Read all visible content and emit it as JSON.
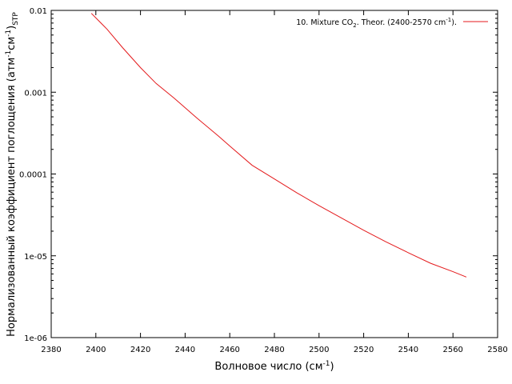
{
  "chart_data": {
    "type": "line",
    "title": "",
    "xlabel": {
      "base": "Волновое число (см",
      "sup": "-1",
      "tail": ")"
    },
    "ylabel": {
      "base": "Нормализованный коэффициент поглощения (атм",
      "sup1": "-1",
      "mid": "см",
      "sup2": "-1",
      "tail": ")",
      "sub": "STP"
    },
    "x_scale": "linear",
    "y_scale": "log",
    "xlim": [
      2380,
      2580
    ],
    "ylim": [
      1e-06,
      0.01
    ],
    "grid": false,
    "legend_position": "top-right",
    "x_ticks": [
      "2380",
      "2400",
      "2420",
      "2440",
      "2460",
      "2480",
      "2500",
      "2520",
      "2540",
      "2560",
      "2580"
    ],
    "y_ticks": [
      "1e-06",
      "1e-05",
      "0.0001",
      "0.001",
      "0.01"
    ],
    "x_tick_values": [
      2380,
      2400,
      2420,
      2440,
      2460,
      2480,
      2500,
      2520,
      2540,
      2560,
      2580
    ],
    "y_tick_values": [
      1e-06,
      1e-05,
      0.0001,
      0.001,
      0.01
    ],
    "series": [
      {
        "name": {
          "p1": "10. Mixture CO",
          "sub": "2",
          "p2": ". Theor. (2400-2570 cm",
          "sup": "-1",
          "p3": ")."
        },
        "color": "#e41a1c",
        "x": [
          2398,
          2405,
          2412,
          2420,
          2427,
          2435,
          2445,
          2455,
          2460,
          2470,
          2480,
          2490,
          2500,
          2510,
          2520,
          2530,
          2540,
          2550,
          2560,
          2566
        ],
        "y": [
          0.0092,
          0.0059,
          0.0035,
          0.002,
          0.00128,
          0.00085,
          0.00049,
          0.00029,
          0.00022,
          0.000128,
          8.7e-05,
          5.9e-05,
          4.1e-05,
          2.9e-05,
          2.05e-05,
          1.48e-05,
          1.09e-05,
          8.1e-06,
          6.4e-06,
          5.5e-06
        ]
      }
    ]
  }
}
